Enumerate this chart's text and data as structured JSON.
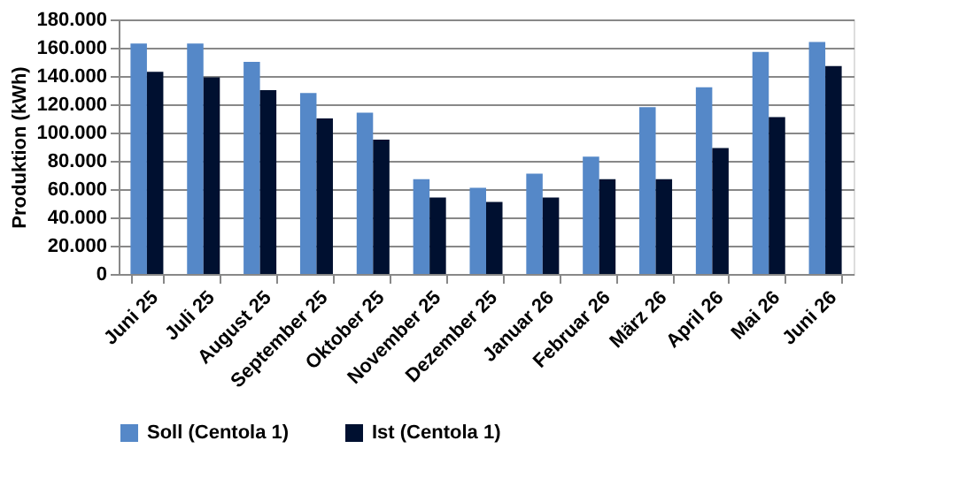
{
  "chart_data": {
    "type": "bar",
    "ylabel": "Produktion (kWh)",
    "categories": [
      "Juni 25",
      "Juli 25",
      "August 25",
      "September 25",
      "Oktober 25",
      "November 25",
      "Dezember 25",
      "Januar 26",
      "Februar 26",
      "März 26",
      "April 26",
      "Mai 26",
      "Juni 26"
    ],
    "series": [
      {
        "name": "Soll (Centola 1)",
        "color": "#5588c8",
        "values": [
          163000,
          163000,
          150000,
          128000,
          114000,
          67000,
          61000,
          71000,
          83000,
          118000,
          132000,
          157000,
          164000
        ]
      },
      {
        "name": "Ist (Centola 1)",
        "color": "#001030",
        "values": [
          143000,
          139000,
          130000,
          110000,
          95000,
          54000,
          51000,
          54000,
          67000,
          67000,
          89000,
          111000,
          147000
        ]
      }
    ],
    "ylim": [
      0,
      180000
    ],
    "yticks": [
      0,
      {
        "value": 20000,
        "label": "20.000"
      },
      {
        "value": 40000,
        "label": "40.000"
      },
      {
        "value": 60000,
        "label": "60.000"
      },
      {
        "value": 80000,
        "label": "80.000"
      },
      {
        "value": 100000,
        "label": "100.000"
      },
      {
        "value": 120000,
        "label": "120.000"
      },
      {
        "value": 140000,
        "label": "140.000"
      },
      {
        "value": 160000,
        "label": "160.000"
      },
      {
        "value": 180000,
        "label": "180.000"
      }
    ],
    "grid": "y",
    "legend": "bottom"
  }
}
